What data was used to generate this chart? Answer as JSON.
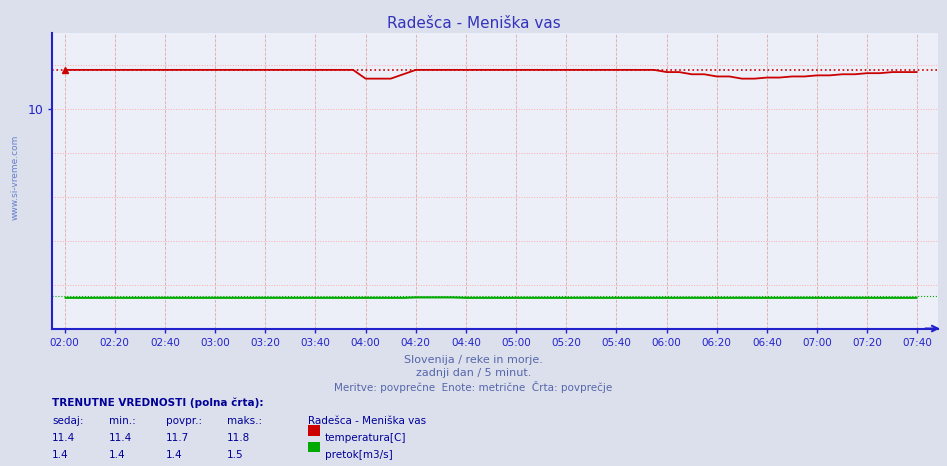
{
  "title": "Radešca - Meniška vas",
  "title_color": "#3333bb",
  "bg_color": "#dce0ec",
  "plot_bg_color": "#eceef8",
  "xlabel1": "Slovenija / reke in morje.",
  "xlabel2": "zadnji dan / 5 minut.",
  "xlabel3": "Meritve: povprečne  Enote: metrične  Črta: povprečje",
  "xlabel_color": "#5566aa",
  "axis_color": "#2222cc",
  "watermark": "www.si-vreme.com",
  "watermark_color": "#3355bb",
  "x_ticks": [
    "02:00",
    "02:20",
    "02:40",
    "03:00",
    "03:20",
    "03:40",
    "04:00",
    "04:20",
    "04:40",
    "05:00",
    "05:20",
    "05:40",
    "06:00",
    "06:20",
    "06:40",
    "07:00",
    "07:20",
    "07:40"
  ],
  "x_tick_vals": [
    0,
    20,
    40,
    60,
    80,
    100,
    120,
    140,
    160,
    180,
    200,
    220,
    240,
    260,
    280,
    300,
    320,
    340
  ],
  "ylim": [
    0,
    13.5
  ],
  "grid_color": "#ffaaaa",
  "grid_color_v": "#ddaaaa",
  "temp_color": "#cc0000",
  "flow_color": "#00aa00",
  "temp_max_line": 11.8,
  "flow_max_line": 1.5,
  "legend_station": "Radešca - Meniška vas",
  "legend_temp": "temperatura[C]",
  "legend_flow": "pretok[m3/s]",
  "table_header": [
    "sedaj:",
    "min.:",
    "povpr.:",
    "maks.:"
  ],
  "table_temp": [
    11.4,
    11.4,
    11.7,
    11.8
  ],
  "table_flow": [
    1.4,
    1.4,
    1.4,
    1.5
  ],
  "table_label": "TRENUTNE VREDNOSTI (polna črta):",
  "table_color": "#000099"
}
